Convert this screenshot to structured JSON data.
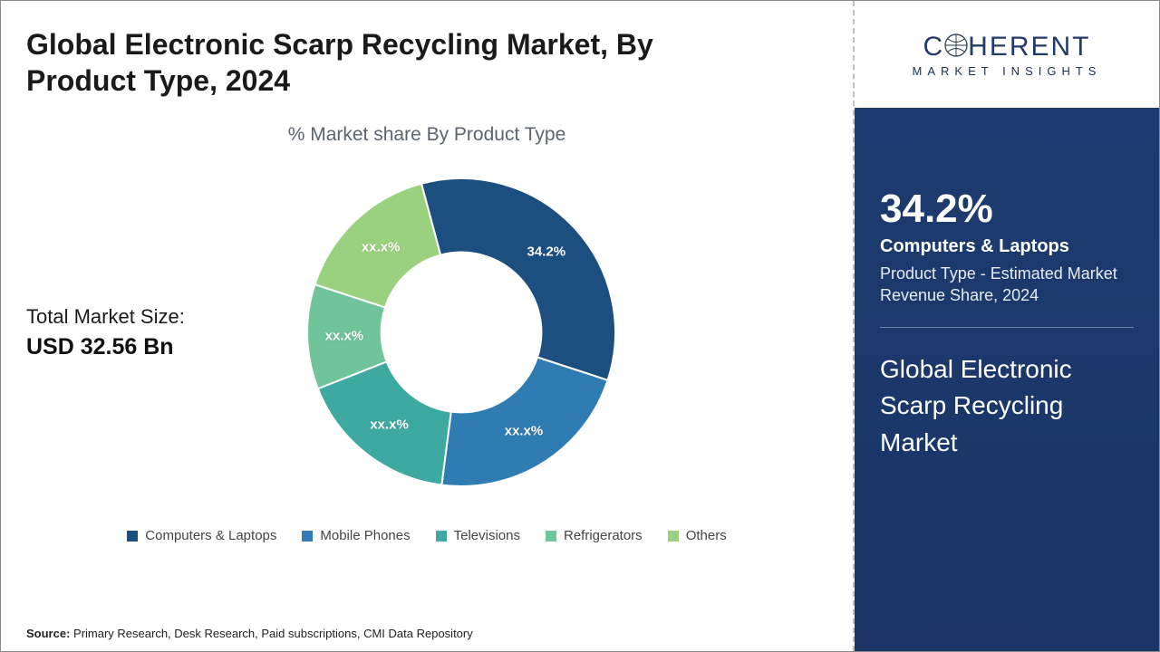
{
  "title": "Global Electronic Scarp Recycling Market, By Product Type, 2024",
  "subtitle": "% Market share By Product Type",
  "market_size": {
    "label": "Total Market Size:",
    "value": "USD 32.56 Bn"
  },
  "chart": {
    "type": "donut",
    "background_color": "#ffffff",
    "inner_radius_ratio": 0.52,
    "outer_radius": 170,
    "segments": [
      {
        "name": "Computers & Laptops",
        "value": 34.2,
        "label": "34.2%",
        "color": "#1c4e80"
      },
      {
        "name": "Mobile Phones",
        "value": 22.0,
        "label": "xx.x%",
        "color": "#2f7cb3"
      },
      {
        "name": "Televisions",
        "value": 17.0,
        "label": "xx.x%",
        "color": "#3da9a0"
      },
      {
        "name": "Refrigerators",
        "value": 11.0,
        "label": "xx.x%",
        "color": "#6fc49a"
      },
      {
        "name": "Others",
        "value": 15.8,
        "label": "xx.x%",
        "color": "#9ad17f"
      }
    ],
    "start_angle_deg": -15,
    "label_fontsize": 15,
    "label_color": "#ffffff"
  },
  "legend": {
    "items": [
      {
        "label": "Computers & Laptops",
        "color": "#1c4e80"
      },
      {
        "label": "Mobile Phones",
        "color": "#2f7cb3"
      },
      {
        "label": "Televisions",
        "color": "#3da9a0"
      },
      {
        "label": "Refrigerators",
        "color": "#6fc49a"
      },
      {
        "label": "Others",
        "color": "#9ad17f"
      }
    ],
    "fontsize": 15
  },
  "right_panel": {
    "brand_main": "C   HERENT",
    "brand_sub": "MARKET INSIGHTS",
    "blue_bg": "#1c3a6e",
    "big_pct": "34.2%",
    "pct_name": "Computers & Laptops",
    "pct_desc": "Product Type - Estimated Market Revenue Share, 2024",
    "title": "Global Electronic Scarp Recycling Market"
  },
  "source": {
    "label": "Source:",
    "text": "Primary Research, Desk Research, Paid subscriptions, CMI Data Repository"
  }
}
